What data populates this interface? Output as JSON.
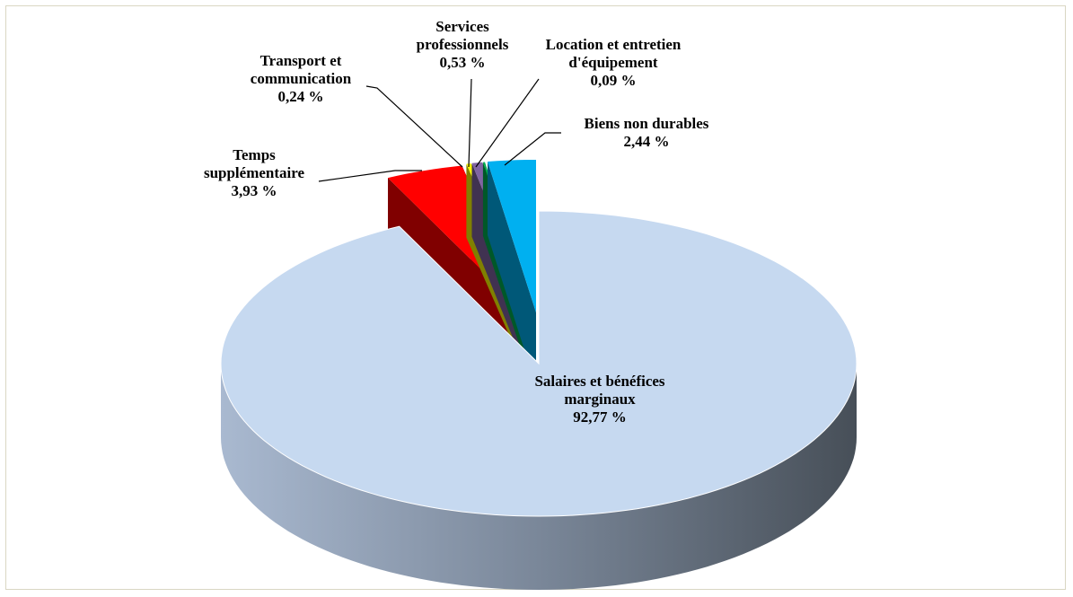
{
  "chart_data": {
    "type": "pie",
    "categories": [
      "Salaires et bénéfices marginaux",
      "Temps supplémentaire",
      "Transport et communication",
      "Services professionnels",
      "Location et entretien d'équipement",
      "Biens non durables"
    ],
    "values": [
      92.77,
      3.93,
      0.24,
      0.53,
      0.09,
      2.44
    ],
    "value_labels": [
      "92,77 %",
      "3,93 %",
      "0,24 %",
      "0,53 %",
      "0,09 %",
      "2,44 %"
    ],
    "colors": [
      "#c6d9f0",
      "#ff0000",
      "#ffff00",
      "#8064a2",
      "#00b050",
      "#00b0f0"
    ]
  }
}
